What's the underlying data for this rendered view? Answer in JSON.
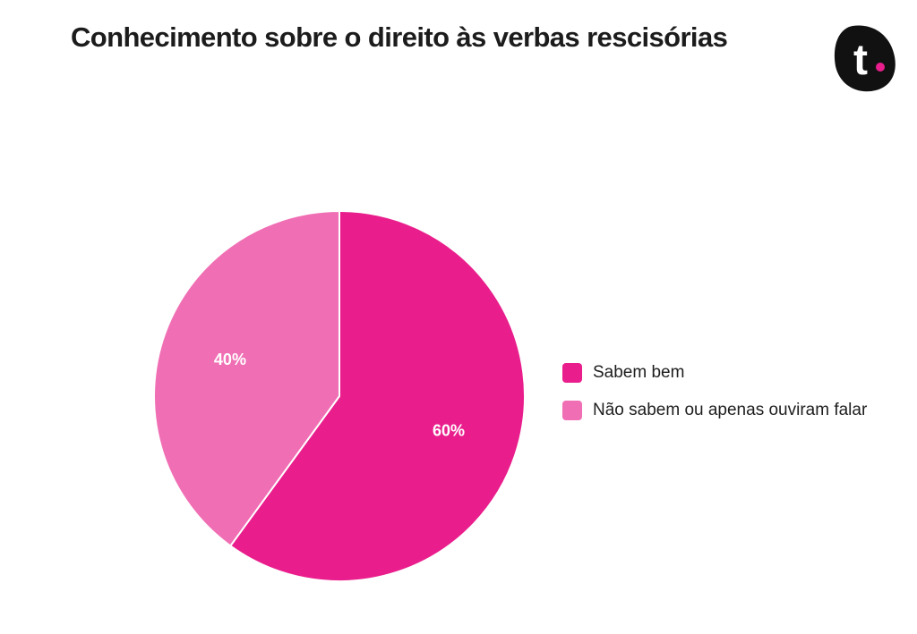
{
  "chart_data": {
    "type": "pie",
    "title": "Conhecimento sobre o direito às verbas rescisórias",
    "legend_position": "right",
    "slices": [
      {
        "label": "Sabem bem",
        "value": 60,
        "display": "60%",
        "color": "#e91e8c"
      },
      {
        "label": "Não sabem ou apenas ouviram falar",
        "value": 40,
        "display": "40%",
        "color": "#f06eb4"
      }
    ]
  },
  "logo": {
    "letter": "t",
    "background": "#111111",
    "dot_color": "#e91e8c"
  }
}
